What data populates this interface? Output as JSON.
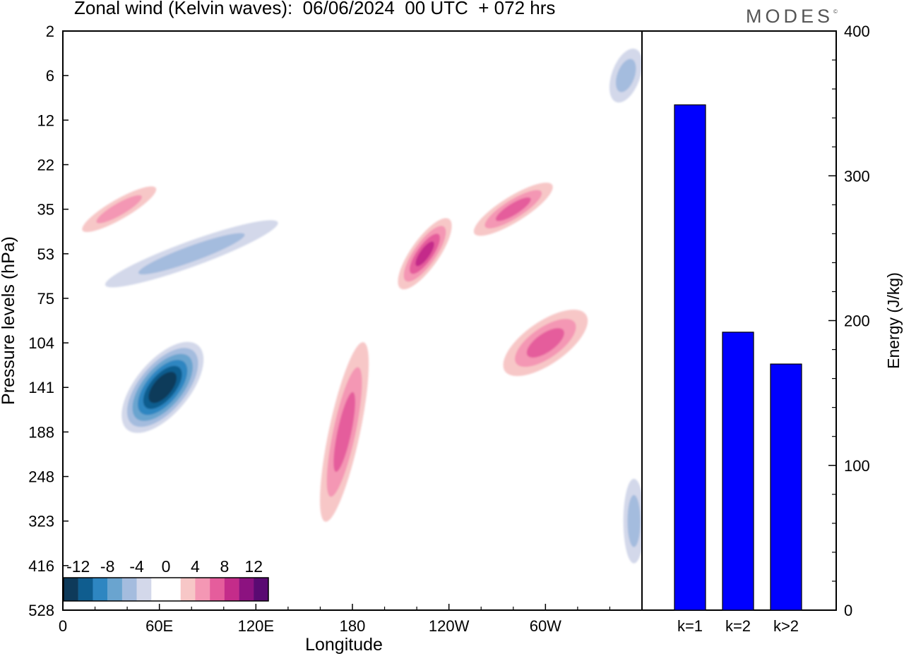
{
  "title": "Zonal wind (Kelvin waves):  06/06/2024  00 UTC  + 072 hrs",
  "brand": "MODES",
  "brand_mark": "©",
  "chart_data": [
    {
      "type": "heatmap",
      "title": "Zonal wind (Kelvin waves):  06/06/2024  00 UTC  + 072 hrs",
      "xlabel": "Longitude",
      "ylabel": "Pressure levels (hPa)",
      "x_ticks": [
        "0",
        "60E",
        "120E",
        "180",
        "120W",
        "60W"
      ],
      "x_range": [
        0,
        360
      ],
      "y_ticks": [
        "2",
        "6",
        "12",
        "22",
        "35",
        "53",
        "75",
        "104",
        "141",
        "188",
        "248",
        "323",
        "416",
        "528"
      ],
      "colorbar": {
        "labels": [
          "-12",
          "-8",
          "-4",
          "0",
          "4",
          "8",
          "12"
        ],
        "colors": [
          "#0e3a5a",
          "#0f5d8f",
          "#2e86c1",
          "#6aa4cf",
          "#a4bcde",
          "#d3d8ea",
          "#ffffff",
          "#ffffff",
          "#f7c7c7",
          "#f497b4",
          "#e55d9c",
          "#c42c8a",
          "#8c1280",
          "#5a0a72"
        ]
      },
      "features": [
        {
          "lon": 62,
          "level": "141",
          "value": -14,
          "rx": 38,
          "ry": 78,
          "angle": 40
        },
        {
          "lon": 175,
          "level": "188",
          "value": 6,
          "rx": 22,
          "ry": 130,
          "angle": 12
        },
        {
          "lon": 225,
          "level": "53",
          "value": 8,
          "rx": 20,
          "ry": 60,
          "angle": 35
        },
        {
          "lon": 300,
          "level": "104",
          "value": 6,
          "rx": 30,
          "ry": 70,
          "angle": 55
        },
        {
          "lon": 280,
          "level": "35",
          "value": 6,
          "rx": 18,
          "ry": 65,
          "angle": 58
        },
        {
          "lon": 35,
          "level": "35",
          "value": 5,
          "rx": 14,
          "ry": 60,
          "angle": 60
        },
        {
          "lon": 80,
          "level": "53",
          "value": -5,
          "rx": 18,
          "ry": 130,
          "angle": 70
        },
        {
          "lon": 350,
          "level": "6",
          "value": -5,
          "rx": 20,
          "ry": 40,
          "angle": 20
        },
        {
          "lon": 355,
          "level": "323",
          "value": -5,
          "rx": 15,
          "ry": 60,
          "angle": 0
        }
      ]
    },
    {
      "type": "bar",
      "categories": [
        "k=1",
        "k=2",
        "k>2"
      ],
      "values": [
        349,
        192,
        170
      ],
      "ylabel": "Energy (J/kg)",
      "ylim": [
        0,
        400
      ],
      "y_ticks": [
        "0",
        "100",
        "200",
        "300",
        "400"
      ],
      "bar_color": "#0000ff"
    }
  ]
}
